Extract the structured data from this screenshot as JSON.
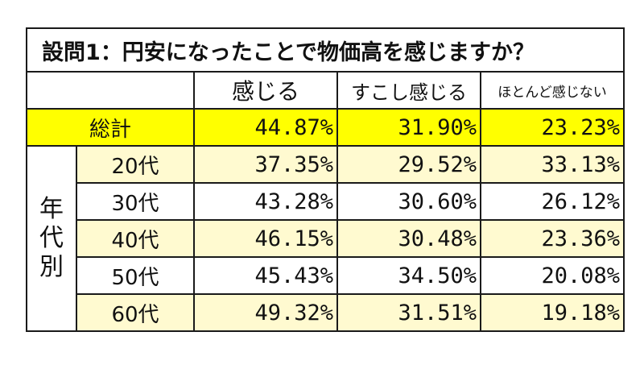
{
  "chart_data": {
    "type": "table",
    "title": "設問1：円安になったことで物価高を感じますか？",
    "columns": [
      "感じる",
      "すこし感じる",
      "ほとんど感じない"
    ],
    "total": {
      "label": "総計",
      "values": [
        "44.87%",
        "31.90%",
        "23.23%"
      ]
    },
    "group_label": [
      "年",
      "代",
      "別"
    ],
    "rows": [
      {
        "label": "20代",
        "values": [
          "37.35%",
          "29.52%",
          "33.13%"
        ]
      },
      {
        "label": "30代",
        "values": [
          "43.28%",
          "30.60%",
          "26.12%"
        ]
      },
      {
        "label": "40代",
        "values": [
          "46.15%",
          "30.48%",
          "23.36%"
        ]
      },
      {
        "label": "50代",
        "values": [
          "45.43%",
          "34.50%",
          "20.08%"
        ]
      },
      {
        "label": "60代",
        "values": [
          "49.32%",
          "31.51%",
          "19.18%"
        ]
      }
    ]
  },
  "colors": {
    "total_row": "#ffff00",
    "alt_row": "#fffad0",
    "border": "#1a1a1a"
  }
}
